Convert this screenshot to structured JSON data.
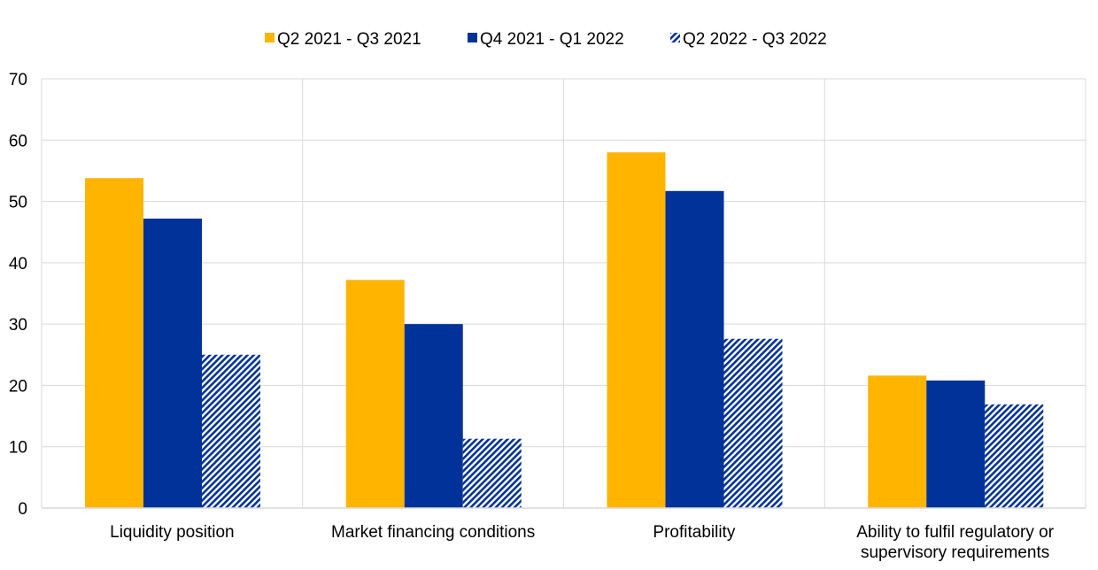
{
  "chart_data": {
    "type": "bar",
    "categories": [
      "Liquidity position",
      "Market financing conditions",
      "Profitability",
      [
        "Ability to fulfil regulatory or",
        "supervisory requirements"
      ]
    ],
    "series": [
      {
        "name": "Q2 2021 - Q3 2021",
        "color": "#ffb400",
        "pattern": "solid",
        "values": [
          53.8,
          37.2,
          58.0,
          21.6
        ]
      },
      {
        "name": "Q4 2021 - Q1 2022",
        "color": "#003299",
        "pattern": "solid",
        "values": [
          47.2,
          30.0,
          51.7,
          20.8
        ]
      },
      {
        "name": "Q2 2022 - Q3 2022",
        "color": "#003299",
        "pattern": "diagonal-hatch",
        "values": [
          25.0,
          11.3,
          27.6,
          16.9
        ]
      }
    ],
    "ylim": [
      0,
      70
    ],
    "yticks": [
      0,
      10,
      20,
      30,
      40,
      50,
      60,
      70
    ],
    "grid": true,
    "legend": "top-center"
  }
}
